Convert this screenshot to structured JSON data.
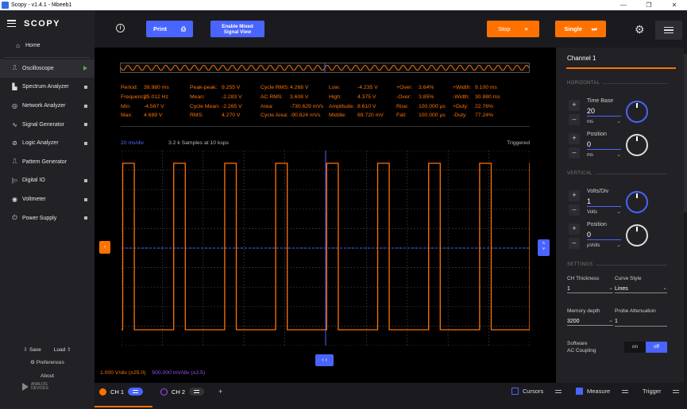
{
  "window": {
    "title": "Scopy - v1.4.1 - f4beeb1"
  },
  "sidebar": {
    "logo": "SCOPY",
    "home_label": "Home",
    "items": [
      {
        "label": "Oscilloscope",
        "icon": "oscilloscope-icon",
        "status": "running"
      },
      {
        "label": "Spectrum Analyzer",
        "icon": "spectrum-icon",
        "status": "stopped"
      },
      {
        "label": "Network Analyzer",
        "icon": "network-icon",
        "status": "stopped"
      },
      {
        "label": "Signal Generator",
        "icon": "signal-generator-icon",
        "status": "stopped"
      },
      {
        "label": "Logic Analyzer",
        "icon": "logic-icon",
        "status": "stopped"
      },
      {
        "label": "Pattern Generator",
        "icon": "pattern-icon",
        "status": ""
      },
      {
        "label": "Digital IO",
        "icon": "digital-io-icon",
        "status": "stopped"
      },
      {
        "label": "Voltmeter",
        "icon": "voltmeter-icon",
        "status": "stopped"
      },
      {
        "label": "Power Supply",
        "icon": "power-supply-icon",
        "status": "stopped"
      }
    ],
    "save_label": "Save",
    "load_label": "Load",
    "preferences_label": "Preferences",
    "about_label": "About",
    "brand_line1": "ANALOG",
    "brand_line2": "DEVICES"
  },
  "toolbar": {
    "info_glyph": "i",
    "print_label": "Print",
    "mixed_line1": "Enable Mixed",
    "mixed_line2": "Signal View",
    "stop_label": "Stop",
    "single_label": "Single"
  },
  "measurements": [
    [
      [
        "Period:",
        "39.980 ms"
      ],
      [
        "Peak-peak:",
        "9.255 V"
      ],
      [
        "Cycle RMS:",
        "4.268 V"
      ],
      [
        "Low:",
        "-4.235 V"
      ],
      [
        "+Over:",
        "3.64%"
      ],
      [
        "+Width:",
        "9.100 ms"
      ]
    ],
    [
      [
        "Frequency:",
        "25.012 Hz"
      ],
      [
        "Mean:",
        "-2.283 V"
      ],
      [
        "AC RMS:",
        "3.608 V"
      ],
      [
        "High:",
        "4.375 V"
      ],
      [
        "-Over:",
        "3.85%"
      ],
      [
        "-Width:",
        "30.880 ms"
      ]
    ],
    [
      [
        "Min:",
        "-4.567 V"
      ],
      [
        "Cycle Mean:",
        "-2.265 V"
      ],
      [
        "Area:",
        "-730.629 mVs"
      ],
      [
        "Amplitude:",
        "8.610 V"
      ],
      [
        "Rise:",
        "100.000 µs"
      ],
      [
        "+Duty:",
        "22.76%"
      ]
    ],
    [
      [
        "Max:",
        "4.689 V"
      ],
      [
        "RMS:",
        "4.270 V"
      ],
      [
        "Cycle Area:",
        "-90.824 mVs"
      ],
      [
        "Middle:",
        "69.720 mV"
      ],
      [
        "Fall:",
        "100.000 µs"
      ],
      [
        "-Duty:",
        "77.24%"
      ]
    ]
  ],
  "plot": {
    "time_div": "20 ms/div",
    "samples_text": "3.2 k Samples at 10 ksps",
    "trigger_status": "Triggered",
    "ch1_scale": "1.000 V/div (±25.0)",
    "ch2_scale": "500.000 mV/div (±2.5)"
  },
  "channels": {
    "ch1_label": "CH 1",
    "ch2_label": "CH 2",
    "add_glyph": "+",
    "ch1_color": "#ff7200",
    "ch2_color": "#a24cff"
  },
  "bottom": {
    "cursors_label": "Cursors",
    "measure_label": "Measure",
    "trigger_label": "Trigger"
  },
  "right_panel": {
    "title": "Channel 1",
    "horizontal_label": "HORIZONTAL",
    "time_base_label": "Time Base",
    "time_base_value": "20",
    "time_base_unit": "ms",
    "h_position_label": "Position",
    "h_position_value": "0",
    "h_position_unit": "ms",
    "vertical_label": "VERTICAL",
    "volts_div_label": "Volts/Div",
    "volts_div_value": "1",
    "volts_div_unit": "Volts",
    "v_position_label": "Position",
    "v_position_value": "0",
    "v_position_unit": "µVolts",
    "settings_label": "SETTINGS",
    "ch_thickness_label": "CH Thickness",
    "ch_thickness_value": "1",
    "curve_style_label": "Curve Style",
    "curve_style_value": "Lines",
    "memory_depth_label": "Memory depth",
    "memory_depth_value": "3200",
    "probe_atten_label": "Probe Attenuation",
    "probe_atten_value": "1",
    "sw_coupling_line1": "Software",
    "sw_coupling_line2": "AC Coupling",
    "toggle_on": "on",
    "toggle_off": "off"
  },
  "accent_colors": {
    "primary": "#4a64ff",
    "orange": "#ff7200"
  }
}
